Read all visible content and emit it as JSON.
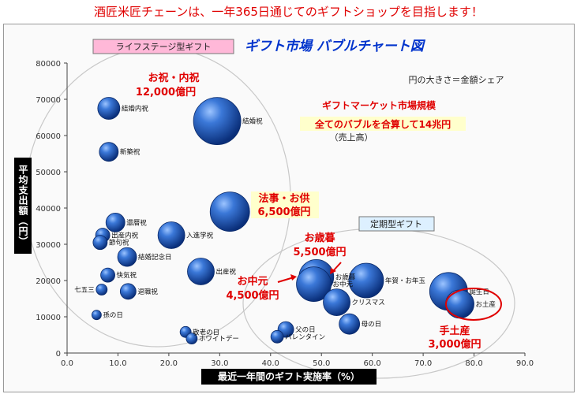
{
  "banner": "酒匠米匠チェーンは、一年365日通じてのギフトショップを目指します！",
  "chart_data": {
    "type": "scatter",
    "title": "ギフト市場 バブルチャート図",
    "xlabel": "最近一年間のギフト実施率（%）",
    "ylabel": "平均支出額（円）",
    "xlim": [
      0,
      90
    ],
    "ylim": [
      0,
      80000
    ],
    "xticks": [
      "0.0",
      "10.0",
      "20.0",
      "30.0",
      "40.0",
      "50.0",
      "60.0",
      "70.0",
      "80.0",
      "90.0"
    ],
    "yticks": [
      "0",
      "10000",
      "20000",
      "30000",
      "40000",
      "50000",
      "60000",
      "70000",
      "80000"
    ],
    "grid": false,
    "size_note": "円の大きさ＝金額シェア",
    "group_labels": {
      "lifestage": "ライフステージ型ギフト",
      "periodic": "定期型ギフト"
    },
    "points": [
      {
        "label": "結婚内祝",
        "x": 8.2,
        "y": 67500,
        "size": 14
      },
      {
        "label": "結婚祝",
        "x": 29.5,
        "y": 64000,
        "size": 30
      },
      {
        "label": "新築祝",
        "x": 8.2,
        "y": 55500,
        "size": 12
      },
      {
        "label": "還暦祝",
        "x": 9.5,
        "y": 36000,
        "size": 12
      },
      {
        "label": "出産内祝",
        "x": 7.0,
        "y": 32500,
        "size": 9
      },
      {
        "label": "節句祝",
        "x": 6.5,
        "y": 30500,
        "size": 9
      },
      {
        "label": "結婚記念日",
        "x": 11.8,
        "y": 26500,
        "size": 12
      },
      {
        "label": "入進学祝",
        "x": 20.5,
        "y": 32500,
        "size": 17
      },
      {
        "label": "出産祝",
        "x": 26.3,
        "y": 22500,
        "size": 17
      },
      {
        "label": "快気祝",
        "x": 8.0,
        "y": 21500,
        "size": 9
      },
      {
        "label": "七五三",
        "x": 6.8,
        "y": 17500,
        "size": 7
      },
      {
        "label": "退職祝",
        "x": 12.0,
        "y": 17000,
        "size": 10
      },
      {
        "label": "孫の日",
        "x": 5.8,
        "y": 10500,
        "size": 6
      },
      {
        "label": "法事・お供",
        "x": 32.0,
        "y": 39000,
        "size": 25
      },
      {
        "label": "お歳暮",
        "x": 49.0,
        "y": 21000,
        "size": 22
      },
      {
        "label": "お中元",
        "x": 48.5,
        "y": 19000,
        "size": 22
      },
      {
        "label": "クリスマス",
        "x": 53.0,
        "y": 14000,
        "size": 17
      },
      {
        "label": "年賀・お年玉",
        "x": 58.8,
        "y": 20000,
        "size": 22
      },
      {
        "label": "誕生日",
        "x": 75.0,
        "y": 17000,
        "size": 24
      },
      {
        "label": "お土産",
        "x": 77.2,
        "y": 13500,
        "size": 18
      },
      {
        "label": "母の日",
        "x": 55.5,
        "y": 8000,
        "size": 13
      },
      {
        "label": "父の日",
        "x": 43.0,
        "y": 6500,
        "size": 10
      },
      {
        "label": "バレンタイン",
        "x": 41.3,
        "y": 4500,
        "size": 8
      },
      {
        "label": "敬老の日",
        "x": 23.3,
        "y": 5800,
        "size": 7
      },
      {
        "label": "ホワイトデー",
        "x": 24.5,
        "y": 4000,
        "size": 7
      }
    ],
    "annotations": [
      {
        "line1": "お祝・内祝",
        "line2": "12,000億円"
      },
      {
        "line1": "法事・お供",
        "line2": "6,500億円"
      },
      {
        "line1": "お歳暮",
        "line2": "5,500億円"
      },
      {
        "line1": "お中元",
        "line2": "4,500億円"
      },
      {
        "line1": "手土産",
        "line2": "3,000億円"
      }
    ],
    "market_note": {
      "line1": "ギフトマーケット市場規模",
      "line2": "全てのバブルを合算して14兆円",
      "line3": "（売上高）"
    }
  }
}
